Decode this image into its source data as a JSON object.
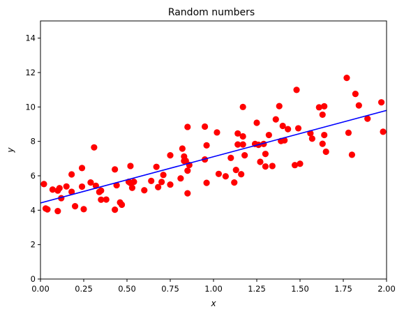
{
  "chart_data": {
    "type": "scatter",
    "title": "Random numbers",
    "xlabel": "x",
    "ylabel": "y",
    "xlim": [
      0,
      2
    ],
    "ylim": [
      0,
      15
    ],
    "x_ticks": [
      "0.00",
      "0.25",
      "0.50",
      "0.75",
      "1.00",
      "1.25",
      "1.50",
      "1.75",
      "2.00"
    ],
    "y_ticks": [
      "0",
      "2",
      "4",
      "6",
      "8",
      "10",
      "12",
      "14"
    ],
    "grid": false,
    "legend": "none",
    "colors": {
      "points": "#ff0000",
      "fit_line": "#0000ff",
      "axes": "#000000",
      "background": "#ffffff"
    },
    "series": [
      {
        "kind": "scatter",
        "points": [
          [
            0.02,
            5.52
          ],
          [
            0.03,
            4.1
          ],
          [
            0.04,
            4.05
          ],
          [
            0.07,
            5.2
          ],
          [
            0.1,
            3.95
          ],
          [
            0.1,
            5.14
          ],
          [
            0.11,
            5.28
          ],
          [
            0.12,
            4.7
          ],
          [
            0.15,
            5.38
          ],
          [
            0.18,
            5.07
          ],
          [
            0.18,
            6.08
          ],
          [
            0.2,
            4.23
          ],
          [
            0.24,
            5.37
          ],
          [
            0.24,
            6.45
          ],
          [
            0.25,
            4.06
          ],
          [
            0.29,
            5.61
          ],
          [
            0.31,
            7.65
          ],
          [
            0.32,
            5.42
          ],
          [
            0.34,
            5.06
          ],
          [
            0.35,
            5.14
          ],
          [
            0.35,
            4.61
          ],
          [
            0.38,
            4.62
          ],
          [
            0.43,
            6.37
          ],
          [
            0.43,
            4.03
          ],
          [
            0.44,
            5.45
          ],
          [
            0.46,
            4.45
          ],
          [
            0.47,
            4.32
          ],
          [
            0.51,
            5.65
          ],
          [
            0.52,
            5.58
          ],
          [
            0.52,
            6.57
          ],
          [
            0.53,
            5.3
          ],
          [
            0.54,
            5.65
          ],
          [
            0.6,
            5.16
          ],
          [
            0.64,
            5.7
          ],
          [
            0.67,
            6.52
          ],
          [
            0.68,
            5.34
          ],
          [
            0.7,
            5.64
          ],
          [
            0.71,
            6.05
          ],
          [
            0.75,
            5.49
          ],
          [
            0.75,
            7.19
          ],
          [
            0.81,
            5.85
          ],
          [
            0.82,
            7.58
          ],
          [
            0.83,
            7.12
          ],
          [
            0.83,
            6.86
          ],
          [
            0.84,
            6.87
          ],
          [
            0.85,
            4.98
          ],
          [
            0.85,
            6.3
          ],
          [
            0.85,
            8.84
          ],
          [
            0.86,
            6.63
          ],
          [
            0.95,
            6.95
          ],
          [
            0.95,
            8.86
          ],
          [
            0.96,
            5.59
          ],
          [
            0.96,
            7.77
          ],
          [
            1.02,
            8.52
          ],
          [
            1.03,
            6.11
          ],
          [
            1.07,
            5.97
          ],
          [
            1.1,
            7.04
          ],
          [
            1.12,
            5.61
          ],
          [
            1.13,
            6.34
          ],
          [
            1.14,
            7.82
          ],
          [
            1.14,
            8.46
          ],
          [
            1.16,
            6.09
          ],
          [
            1.17,
            8.29
          ],
          [
            1.17,
            7.82
          ],
          [
            1.17,
            10.0
          ],
          [
            1.18,
            7.19
          ],
          [
            1.24,
            7.85
          ],
          [
            1.25,
            9.08
          ],
          [
            1.26,
            7.8
          ],
          [
            1.27,
            6.81
          ],
          [
            1.29,
            7.85
          ],
          [
            1.3,
            7.27
          ],
          [
            1.3,
            6.54
          ],
          [
            1.32,
            8.37
          ],
          [
            1.34,
            6.57
          ],
          [
            1.36,
            9.28
          ],
          [
            1.38,
            10.05
          ],
          [
            1.39,
            8.02
          ],
          [
            1.4,
            8.9
          ],
          [
            1.41,
            8.06
          ],
          [
            1.43,
            8.71
          ],
          [
            1.47,
            6.62
          ],
          [
            1.48,
            10.99
          ],
          [
            1.49,
            8.76
          ],
          [
            1.5,
            6.7
          ],
          [
            1.56,
            8.47
          ],
          [
            1.57,
            8.16
          ],
          [
            1.61,
            9.98
          ],
          [
            1.63,
            7.86
          ],
          [
            1.63,
            9.55
          ],
          [
            1.64,
            10.04
          ],
          [
            1.64,
            8.37
          ],
          [
            1.65,
            7.4
          ],
          [
            1.77,
            11.69
          ],
          [
            1.78,
            8.5
          ],
          [
            1.8,
            7.22
          ],
          [
            1.82,
            10.76
          ],
          [
            1.84,
            10.09
          ],
          [
            1.89,
            9.32
          ],
          [
            1.97,
            10.27
          ],
          [
            1.98,
            8.56
          ]
        ]
      },
      {
        "kind": "line",
        "points": [
          [
            0,
            4.42
          ],
          [
            2,
            9.8
          ]
        ]
      }
    ]
  }
}
